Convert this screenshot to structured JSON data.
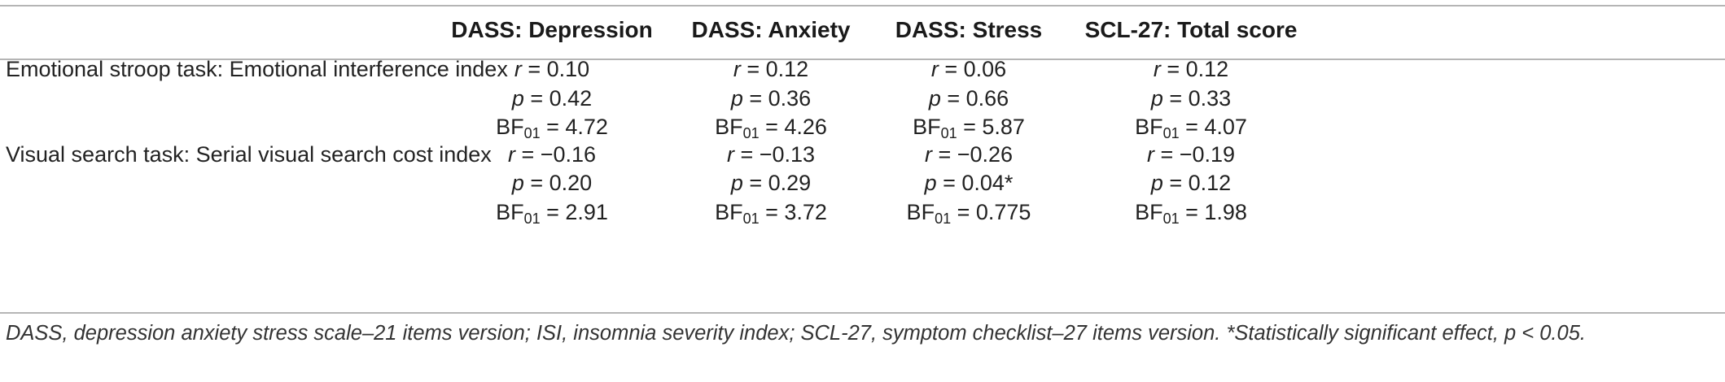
{
  "table": {
    "columns": [
      {
        "label": "DASS: Depression"
      },
      {
        "label": "DASS: Anxiety"
      },
      {
        "label": "DASS: Stress"
      },
      {
        "label": "SCL-27: Total score"
      }
    ],
    "rows": [
      {
        "label": "Emotional stroop task: Emotional interference index",
        "cells": [
          {
            "r": "0.10",
            "p": "0.42",
            "bf": "4.72"
          },
          {
            "r": "0.12",
            "p": "0.36",
            "bf": "4.26"
          },
          {
            "r": "0.06",
            "p": "0.66",
            "bf": "5.87"
          },
          {
            "r": "0.12",
            "p": "0.33",
            "bf": "4.07"
          }
        ]
      },
      {
        "label": "Visual search task: Serial visual search cost index",
        "cells": [
          {
            "r": "−0.16",
            "p": "0.20",
            "bf": "2.91"
          },
          {
            "r": "−0.13",
            "p": "0.29",
            "bf": "3.72"
          },
          {
            "r": "−0.26",
            "p": "0.04*",
            "bf": "0.775"
          },
          {
            "r": "−0.19",
            "p": "0.12",
            "bf": "1.98"
          }
        ]
      }
    ],
    "stat_labels": {
      "r": "r",
      "p": "p",
      "bf": "BF",
      "bf_sub": "01",
      "eq": " = "
    },
    "footnote": "DASS, depression anxiety stress scale–21 items version; ISI, insomnia severity index; SCL-27, symptom checklist–27 items version. *Statistically significant effect, p < 0.05."
  }
}
